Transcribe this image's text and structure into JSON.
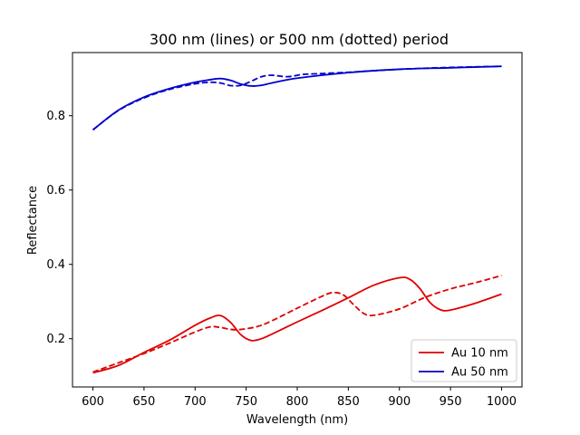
{
  "chart_data": {
    "type": "line",
    "title": "300 nm (lines) or 500 nm (dotted) period",
    "xlabel": "Wavelength (nm)",
    "ylabel": "Reflectance",
    "xlim": [
      580,
      1020
    ],
    "ylim": [
      0.07,
      0.97
    ],
    "xticks": [
      600,
      650,
      700,
      750,
      800,
      850,
      900,
      950,
      1000
    ],
    "yticks": [
      0.2,
      0.4,
      0.6,
      0.8
    ],
    "grid": false,
    "legend_position": "lower-right",
    "legend": [
      {
        "label": "Au 10 nm",
        "color": "#e00000"
      },
      {
        "label": "Au 50 nm",
        "color": "#0000cc"
      }
    ],
    "series": [
      {
        "color": "#e00000",
        "style": "solid",
        "x": [
          600,
          625,
          650,
          675,
          700,
          715,
          725,
          735,
          745,
          755,
          765,
          775,
          800,
          825,
          850,
          875,
          900,
          910,
          920,
          930,
          940,
          950,
          975,
          1000
        ],
        "y": [
          0.108,
          0.128,
          0.163,
          0.196,
          0.236,
          0.256,
          0.262,
          0.243,
          0.21,
          0.195,
          0.2,
          0.212,
          0.245,
          0.277,
          0.31,
          0.344,
          0.364,
          0.36,
          0.335,
          0.297,
          0.278,
          0.277,
          0.296,
          0.32
        ]
      },
      {
        "color": "#e00000",
        "style": "dashed",
        "x": [
          600,
          625,
          650,
          675,
          700,
          715,
          725,
          740,
          760,
          775,
          800,
          825,
          835,
          845,
          855,
          865,
          875,
          900,
          925,
          950,
          975,
          1000
        ],
        "y": [
          0.11,
          0.135,
          0.16,
          0.188,
          0.218,
          0.232,
          0.23,
          0.224,
          0.232,
          0.248,
          0.282,
          0.315,
          0.324,
          0.318,
          0.292,
          0.268,
          0.263,
          0.28,
          0.311,
          0.334,
          0.351,
          0.37
        ]
      },
      {
        "color": "#0000cc",
        "style": "solid",
        "x": [
          600,
          625,
          650,
          675,
          700,
          715,
          725,
          735,
          745,
          755,
          765,
          775,
          800,
          850,
          900,
          950,
          1000
        ],
        "y": [
          0.762,
          0.815,
          0.85,
          0.873,
          0.89,
          0.897,
          0.9,
          0.895,
          0.885,
          0.88,
          0.882,
          0.888,
          0.901,
          0.916,
          0.925,
          0.929,
          0.933
        ]
      },
      {
        "color": "#0000cc",
        "style": "dashed",
        "x": [
          600,
          625,
          650,
          675,
          700,
          715,
          725,
          735,
          745,
          755,
          765,
          775,
          790,
          805,
          820,
          850,
          900,
          950,
          1000
        ],
        "y": [
          0.762,
          0.814,
          0.848,
          0.871,
          0.886,
          0.89,
          0.888,
          0.881,
          0.882,
          0.893,
          0.905,
          0.909,
          0.905,
          0.911,
          0.913,
          0.917,
          0.925,
          0.93,
          0.933
        ]
      }
    ]
  }
}
